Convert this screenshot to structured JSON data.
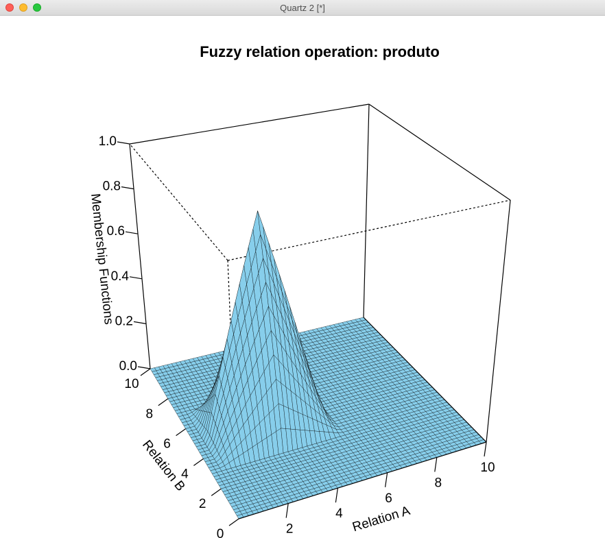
{
  "window": {
    "title": "Quartz 2 [*]"
  },
  "chart_data": {
    "type": "surface",
    "title": "Fuzzy relation operation: produto",
    "xlabel": "Relation A",
    "ylabel": "Relation B",
    "zlabel": "Membership Functions",
    "xlim": [
      0,
      10
    ],
    "ylim": [
      0,
      10
    ],
    "zlim": [
      0,
      1
    ],
    "x_ticks": [
      "2",
      "4",
      "6",
      "8",
      "10"
    ],
    "y_ticks": [
      "0",
      "2",
      "4",
      "6",
      "8",
      "10"
    ],
    "z_ticks": [
      "0.0",
      "0.2",
      "0.4",
      "0.6",
      "0.8",
      "1.0"
    ],
    "surface": {
      "function": "product of two triangular membership functions",
      "peak": {
        "x": 3,
        "y": 5,
        "z": 0.9
      },
      "support_x": [
        0.5,
        5.5
      ],
      "support_y": [
        3,
        7
      ],
      "grid_lines": 50,
      "fill_color": "#87ceeb",
      "line_color": "#000000"
    },
    "box": true,
    "grid": false
  }
}
